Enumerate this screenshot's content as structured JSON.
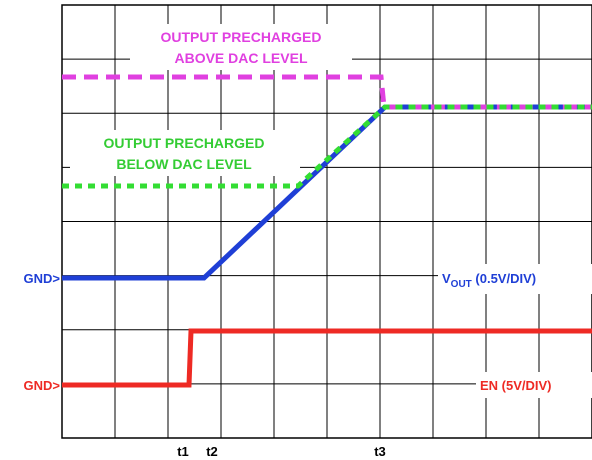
{
  "chart_data": {
    "type": "line",
    "grid": true,
    "annotations": {
      "magenta_top": "OUTPUT PRECHARGED",
      "magenta_bottom": "ABOVE DAC LEVEL",
      "green_top": "OUTPUT PRECHARGED",
      "green_bottom": "BELOW DAC LEVEL"
    },
    "channel_labels": {
      "vout_prefix": "V",
      "vout_sub": "OUT",
      "vout_suffix": " (0.5V/DIV)",
      "en": "EN (5V/DIV)",
      "gnd_vout": "GND>",
      "gnd_en": "GND>"
    },
    "time_markers": [
      "t1",
      "t2",
      "t3"
    ],
    "colors": {
      "vout": "#1f3fd6",
      "en": "#ee2a24",
      "precharged_above": "#e040e0",
      "precharged_below": "#33dd33",
      "annotation_magenta": "#e040e0",
      "annotation_green": "#33cc33",
      "vout_label": "#1f3fd6",
      "en_label": "#ee2a24"
    }
  }
}
